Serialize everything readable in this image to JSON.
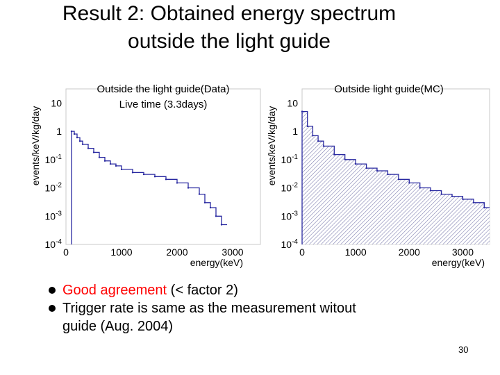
{
  "slide": {
    "title_line1": "Result 2:  Obtained energy spectrum",
    "title_line2": "outside the light guide",
    "page_number": "30"
  },
  "bullets": [
    {
      "highlight": "Good agreement",
      "rest": " (< factor 2)"
    },
    {
      "highlight": "",
      "rest": "Trigger rate is same as the measurement witout"
    },
    {
      "highlight": "",
      "rest": "guide (Aug. 2004)"
    }
  ],
  "chart_data": [
    {
      "type": "line",
      "style": "step-histogram",
      "title": "Outside the light guide(Data)",
      "subtitle": "Live time (3.3days)",
      "xlabel": "energy(keV)",
      "ylabel": "events/keV/kg/day",
      "xlim": [
        0,
        3500
      ],
      "ylim_log10": [
        -4,
        1.5
      ],
      "x_tick_labels": [
        "0",
        "1000",
        "2000",
        "3000"
      ],
      "x_ticks": [
        0,
        1000,
        2000,
        3000
      ],
      "y_tick_labels": [
        {
          "base": "10",
          "exp": "",
          "value_log10": 1
        },
        {
          "base": "1",
          "exp": "",
          "value_log10": 0
        },
        {
          "base": "10",
          "exp": "-1",
          "value_log10": -1
        },
        {
          "base": "10",
          "exp": "-2",
          "value_log10": -2
        },
        {
          "base": "10",
          "exp": "-3",
          "value_log10": -3
        },
        {
          "base": "10",
          "exp": "-4",
          "value_log10": -4
        }
      ],
      "x": [
        100,
        150,
        200,
        250,
        300,
        400,
        500,
        600,
        700,
        800,
        900,
        1000,
        1200,
        1400,
        1600,
        1800,
        2000,
        2200,
        2400,
        2500,
        2600,
        2700,
        2800
      ],
      "y": [
        1,
        0.8,
        0.6,
        0.45,
        0.35,
        0.25,
        0.18,
        0.12,
        0.09,
        0.07,
        0.06,
        0.045,
        0.035,
        0.03,
        0.025,
        0.02,
        0.015,
        0.01,
        0.006,
        0.003,
        0.002,
        0.001,
        0.0005
      ]
    },
    {
      "type": "area",
      "style": "hatched-histogram",
      "title": "Outside light guide(MC)",
      "xlabel": "energy(keV)",
      "ylabel": "events/keV/kg/day",
      "xlim": [
        0,
        3500
      ],
      "ylim_log10": [
        -4,
        1.5
      ],
      "x_tick_labels": [
        "0",
        "1000",
        "2000",
        "3000"
      ],
      "x_ticks": [
        0,
        1000,
        2000,
        3000
      ],
      "y_tick_labels": [
        {
          "base": "10",
          "exp": "",
          "value_log10": 1
        },
        {
          "base": "1",
          "exp": "",
          "value_log10": 0
        },
        {
          "base": "10",
          "exp": "-1",
          "value_log10": -1
        },
        {
          "base": "10",
          "exp": "-2",
          "value_log10": -2
        },
        {
          "base": "10",
          "exp": "-3",
          "value_log10": -3
        },
        {
          "base": "10",
          "exp": "-4",
          "value_log10": -4
        }
      ],
      "x": [
        0,
        100,
        200,
        300,
        400,
        600,
        800,
        1000,
        1200,
        1400,
        1600,
        1800,
        2000,
        2200,
        2400,
        2600,
        2800,
        3000,
        3200,
        3400
      ],
      "y": [
        5,
        1.5,
        0.7,
        0.45,
        0.3,
        0.15,
        0.1,
        0.07,
        0.05,
        0.04,
        0.03,
        0.02,
        0.015,
        0.01,
        0.008,
        0.006,
        0.005,
        0.004,
        0.003,
        0.002
      ]
    }
  ]
}
